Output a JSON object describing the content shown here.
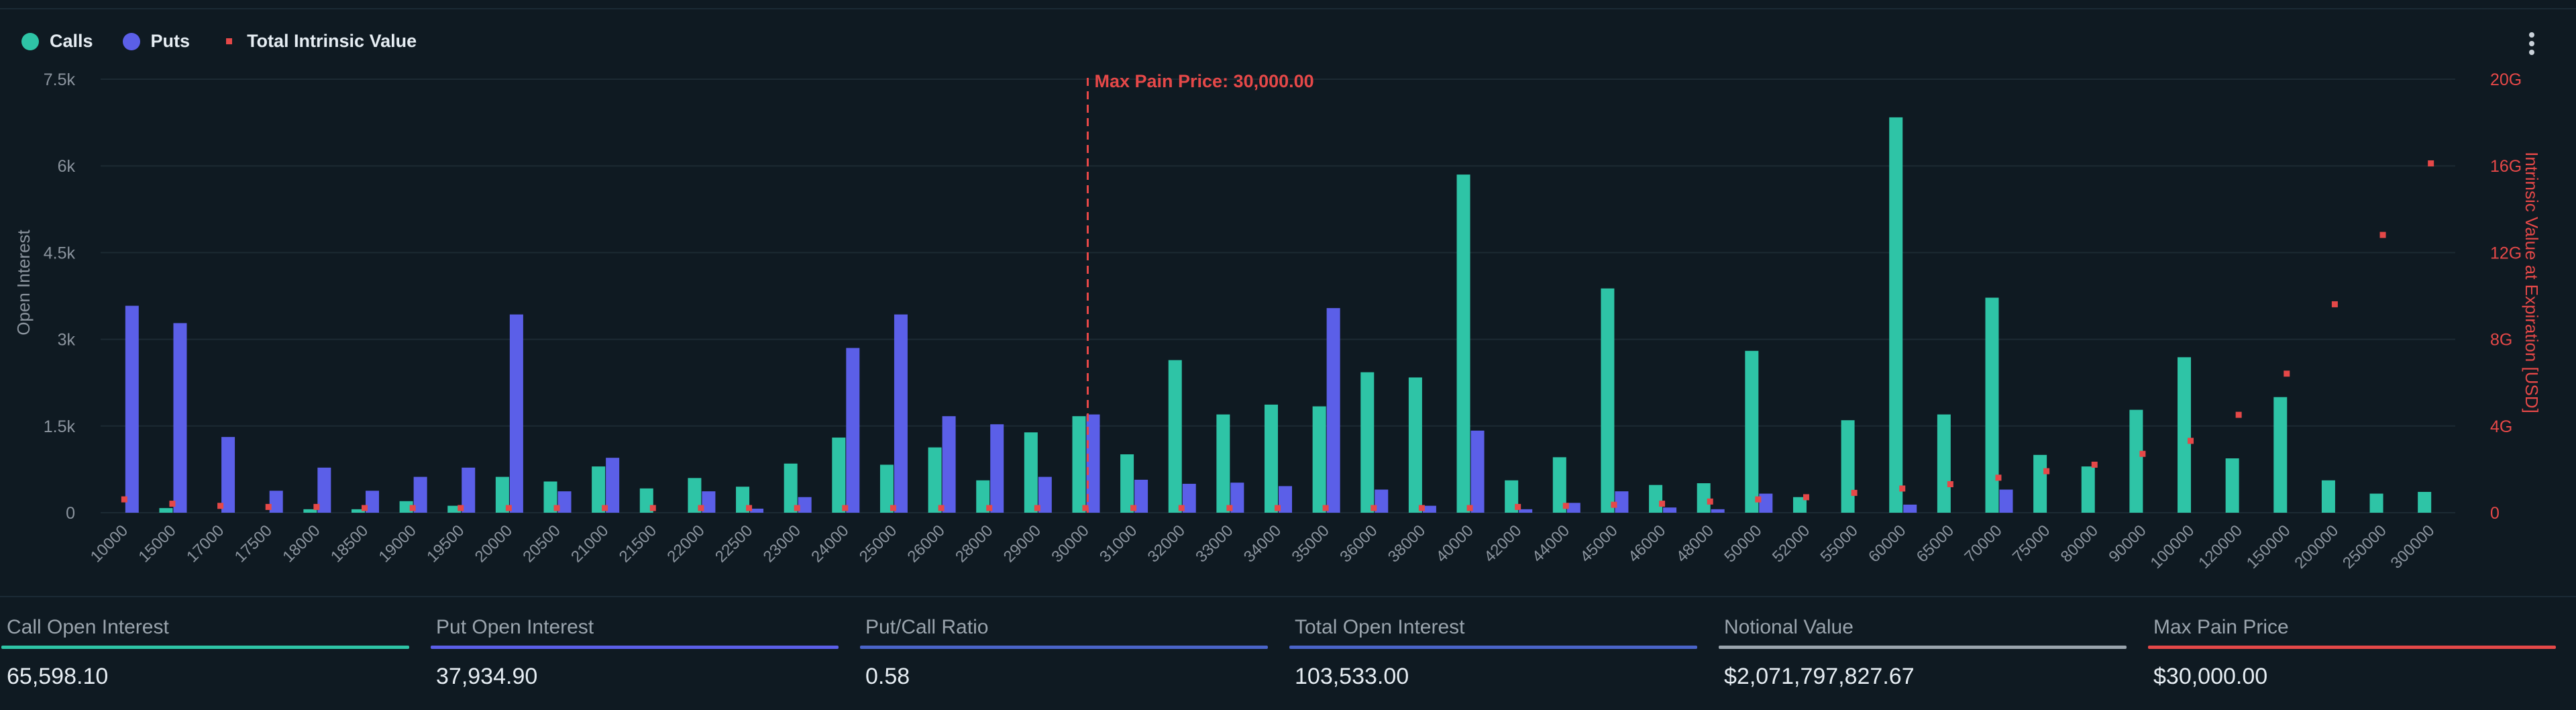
{
  "legend": {
    "calls_label": "Calls",
    "puts_label": "Puts",
    "intrinsic_label": "Total Intrinsic Value"
  },
  "colors": {
    "calls": "#2ec4a6",
    "puts": "#5b5fe8",
    "intrinsic": "#e54848",
    "max_pain": "#e54848",
    "grid": "#1c2a33",
    "axis_text": "#8b949e",
    "stat_notional": "#9aa4ad"
  },
  "chart_data": {
    "type": "bar",
    "title": "",
    "max_pain_label": "Max Pain Price: 30,000.00",
    "max_pain_strike": "30000",
    "ylabel": "Open Interest",
    "y2label": "Intrinsic Value at Expiration [USD]",
    "ylim": [
      0,
      7500
    ],
    "y2lim": [
      0,
      20
    ],
    "yticks": [
      "0",
      "1.5k",
      "3k",
      "4.5k",
      "6k",
      "7.5k"
    ],
    "ytick_values": [
      0,
      1500,
      3000,
      4500,
      6000,
      7500
    ],
    "y2ticks": [
      "0",
      "4G",
      "8G",
      "12G",
      "16G",
      "20G"
    ],
    "y2tick_values": [
      0,
      4,
      8,
      12,
      16,
      20
    ],
    "categories": [
      "10000",
      "15000",
      "17000",
      "17500",
      "18000",
      "18500",
      "19000",
      "19500",
      "20000",
      "20500",
      "21000",
      "21500",
      "22000",
      "22500",
      "23000",
      "24000",
      "25000",
      "26000",
      "28000",
      "29000",
      "30000",
      "31000",
      "32000",
      "33000",
      "34000",
      "35000",
      "36000",
      "38000",
      "40000",
      "42000",
      "44000",
      "45000",
      "46000",
      "48000",
      "50000",
      "52000",
      "55000",
      "60000",
      "65000",
      "70000",
      "75000",
      "80000",
      "90000",
      "100000",
      "120000",
      "150000",
      "200000",
      "250000",
      "300000"
    ],
    "series": [
      {
        "name": "Calls",
        "values": [
          0,
          80,
          0,
          0,
          60,
          60,
          200,
          120,
          620,
          540,
          800,
          420,
          600,
          450,
          850,
          1300,
          830,
          1130,
          560,
          1390,
          1670,
          1010,
          2640,
          1700,
          1870,
          1840,
          2430,
          2340,
          5850,
          560,
          960,
          3880,
          480,
          510,
          2800,
          270,
          1600,
          6840,
          1700,
          3720,
          1000,
          800,
          1780,
          2690,
          940,
          2000,
          560,
          330,
          360
        ]
      },
      {
        "name": "Puts",
        "values": [
          3580,
          3280,
          1310,
          380,
          780,
          380,
          620,
          780,
          3430,
          370,
          950,
          0,
          370,
          70,
          270,
          2850,
          3430,
          1670,
          1530,
          620,
          1700,
          570,
          500,
          520,
          460,
          3540,
          400,
          120,
          1420,
          60,
          170,
          370,
          90,
          60,
          330,
          0,
          0,
          140,
          0,
          400,
          0,
          0,
          0,
          0,
          0,
          0,
          0,
          0,
          0
        ]
      },
      {
        "name": "Total Intrinsic Value",
        "axis": "right",
        "values": [
          0.6,
          0.4,
          0.3,
          0.25,
          0.25,
          0.2,
          0.2,
          0.2,
          0.2,
          0.2,
          0.2,
          0.2,
          0.2,
          0.2,
          0.2,
          0.2,
          0.2,
          0.2,
          0.2,
          0.2,
          0.2,
          0.2,
          0.2,
          0.2,
          0.2,
          0.2,
          0.2,
          0.2,
          0.2,
          0.25,
          0.3,
          0.35,
          0.4,
          0.5,
          0.6,
          0.7,
          0.9,
          1.1,
          1.3,
          1.6,
          1.9,
          2.2,
          2.7,
          3.3,
          4.5,
          6.4,
          9.6,
          12.8,
          16.1
        ]
      }
    ]
  },
  "stats": [
    {
      "label": "Call Open Interest",
      "value": "65,598.10",
      "color": "#2ec4a6"
    },
    {
      "label": "Put Open Interest",
      "value": "37,934.90",
      "color": "#5b5fe8"
    },
    {
      "label": "Put/Call Ratio",
      "value": "0.58",
      "color": "#4a64c8"
    },
    {
      "label": "Total Open Interest",
      "value": "103,533.00",
      "color": "#4a64c8"
    },
    {
      "label": "Notional Value",
      "value": "$2,071,797,827.67",
      "color": "#9aa4ad"
    },
    {
      "label": "Max Pain Price",
      "value": "$30,000.00",
      "color": "#e54848"
    }
  ]
}
